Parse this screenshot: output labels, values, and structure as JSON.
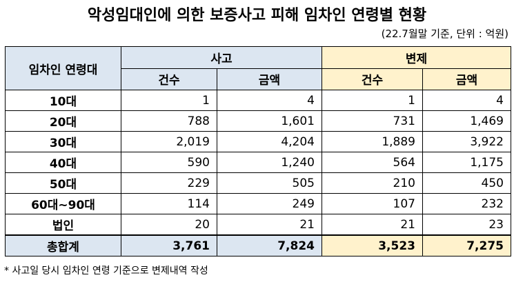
{
  "header": {
    "title": "악성임대인에 의한 보증사고 피해 임차인 연령별 현황",
    "note": "(22.7월말 기준, 단위 : 억원)"
  },
  "table": {
    "corner": "임차인 연령대",
    "groups": [
      "사고",
      "변제"
    ],
    "subheaders": [
      "건수",
      "금액",
      "건수",
      "금액"
    ],
    "rows": [
      [
        "10대",
        "1",
        "4",
        "1",
        "4"
      ],
      [
        "20대",
        "788",
        "1,601",
        "731",
        "1,469"
      ],
      [
        "30대",
        "2,019",
        "4,204",
        "1,889",
        "3,922"
      ],
      [
        "40대",
        "590",
        "1,240",
        "564",
        "1,175"
      ],
      [
        "50대",
        "229",
        "505",
        "210",
        "450"
      ],
      [
        "60대~90대",
        "114",
        "249",
        "107",
        "232"
      ],
      [
        "법인",
        "20",
        "21",
        "21",
        "23"
      ]
    ],
    "total": [
      "총합계",
      "3,761",
      "7,824",
      "3,523",
      "7,275"
    ]
  },
  "footnote": "* 사고일 당시 임차인 연령 기준으로 변제내역 작성"
}
